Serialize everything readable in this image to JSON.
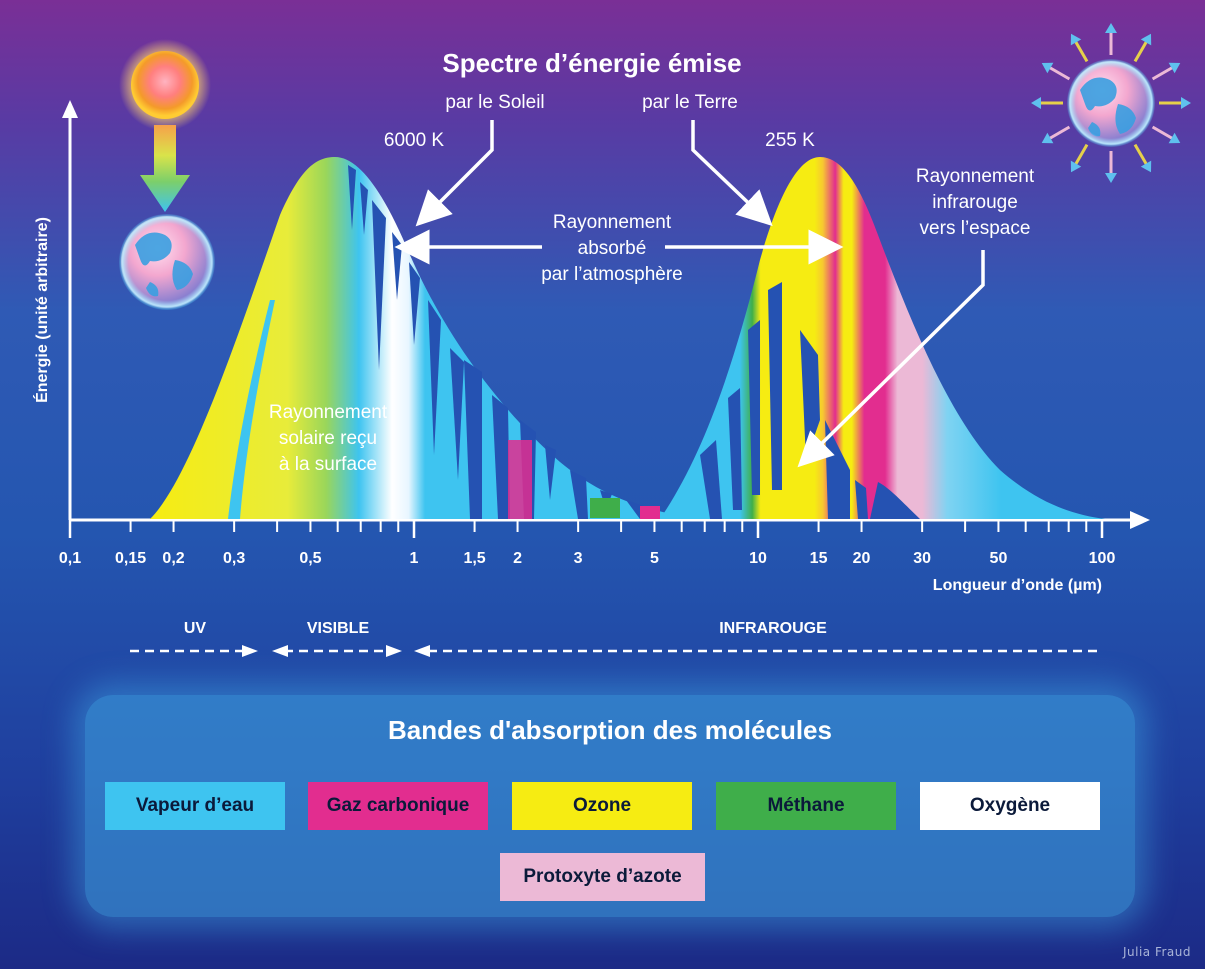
{
  "title": "Spectre d’énergie émise",
  "source_sun": "par le Soleil",
  "source_earth": "par le Terre",
  "temp_sun": "6000 K",
  "temp_earth": "255 K",
  "label_absorbed": [
    "Rayonnement",
    "absorbé",
    "par l’atmosphère"
  ],
  "label_surface": [
    "Rayonnement",
    "solaire reçu",
    "à la surface"
  ],
  "label_space": [
    "Rayonnement",
    "infrarouge",
    "vers l’espace"
  ],
  "y_axis_label": "Énergie (unité arbitraire)",
  "x_axis_label": "Longueur d’onde (µm)",
  "x_ticks": [
    "0,1",
    "0,15",
    "0,2",
    "0,3",
    "0,5",
    "1",
    "1,5",
    "2",
    "3",
    "5",
    "10",
    "15",
    "20",
    "30",
    "50",
    "100"
  ],
  "x_tick_values": [
    0.1,
    0.15,
    0.2,
    0.3,
    0.5,
    1,
    1.5,
    2,
    3,
    5,
    10,
    15,
    20,
    30,
    50,
    100
  ],
  "regions": {
    "uv": "UV",
    "visible": "VISIBLE",
    "infrared": "INFRAROUGE"
  },
  "legend": {
    "title": "Bandes d'absorption des molécules",
    "items": [
      {
        "label": "Vapeur d’eau",
        "color": "#3ec4f0",
        "text_color": "#0b1a3a"
      },
      {
        "label": "Gaz carbonique",
        "color": "#e22d8f",
        "text_color": "#0b1a3a"
      },
      {
        "label": "Ozone",
        "color": "#f6ec12",
        "text_color": "#0b1a3a"
      },
      {
        "label": "Méthane",
        "color": "#3fae4a",
        "text_color": "#0b1a3a"
      },
      {
        "label": "Oxygène",
        "color": "#ffffff",
        "text_color": "#0b1a3a"
      },
      {
        "label": "Protoxyte d’azote",
        "color": "#ecb9d6",
        "text_color": "#0b1a3a"
      }
    ]
  },
  "credit": "Julia Fraud"
}
